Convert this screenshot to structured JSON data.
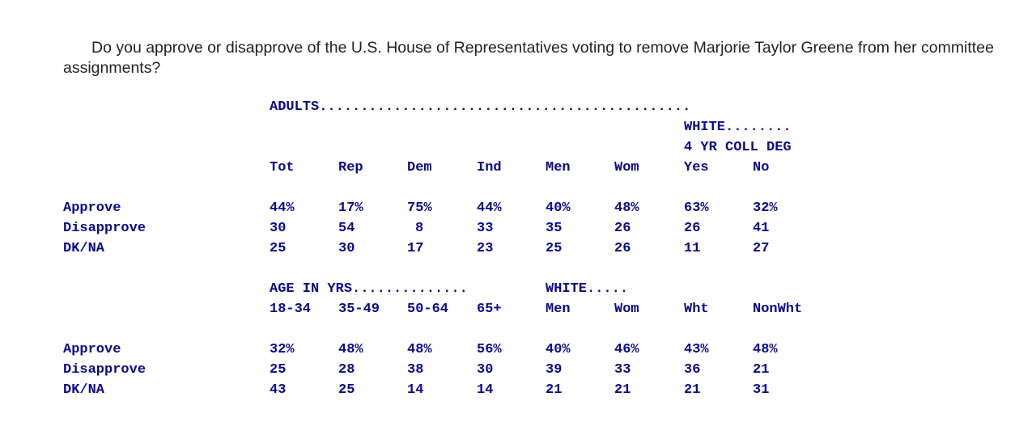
{
  "question": "Do you approve or disapprove of the U.S. House of Representatives voting to remove Marjorie Taylor Greene from her committee assignments?",
  "table1": {
    "group_header": "ADULTS.............................................",
    "subgroup_header": "WHITE........",
    "subgroup_subheader": "4 YR COLL DEG",
    "columns": [
      "Tot",
      "Rep",
      "Dem",
      "Ind",
      "Men",
      "Wom",
      "Yes",
      "No"
    ],
    "rows": [
      {
        "label": "Approve",
        "values": [
          "44%",
          "17%",
          "75%",
          "44%",
          "40%",
          "48%",
          "63%",
          "32%"
        ]
      },
      {
        "label": "Disapprove",
        "values": [
          "30",
          "54",
          "8",
          "33",
          "35",
          "26",
          "26",
          "41"
        ]
      },
      {
        "label": "DK/NA",
        "values": [
          "25",
          "30",
          "17",
          "23",
          "25",
          "26",
          "11",
          "27"
        ]
      }
    ]
  },
  "table2": {
    "group_header_age": "AGE IN YRS..............",
    "group_header_white": "WHITE.....",
    "columns": [
      "18-34",
      "35-49",
      "50-64",
      "65+",
      "Men",
      "Wom",
      "Wht",
      "NonWht"
    ],
    "rows": [
      {
        "label": "Approve",
        "values": [
          "32%",
          "48%",
          "48%",
          "56%",
          "40%",
          "46%",
          "43%",
          "48%"
        ]
      },
      {
        "label": "Disapprove",
        "values": [
          "25",
          "28",
          "38",
          "30",
          "39",
          "33",
          "36",
          "21"
        ]
      },
      {
        "label": "DK/NA",
        "values": [
          "43",
          "25",
          "14",
          "14",
          "21",
          "21",
          "21",
          "31"
        ]
      }
    ]
  }
}
